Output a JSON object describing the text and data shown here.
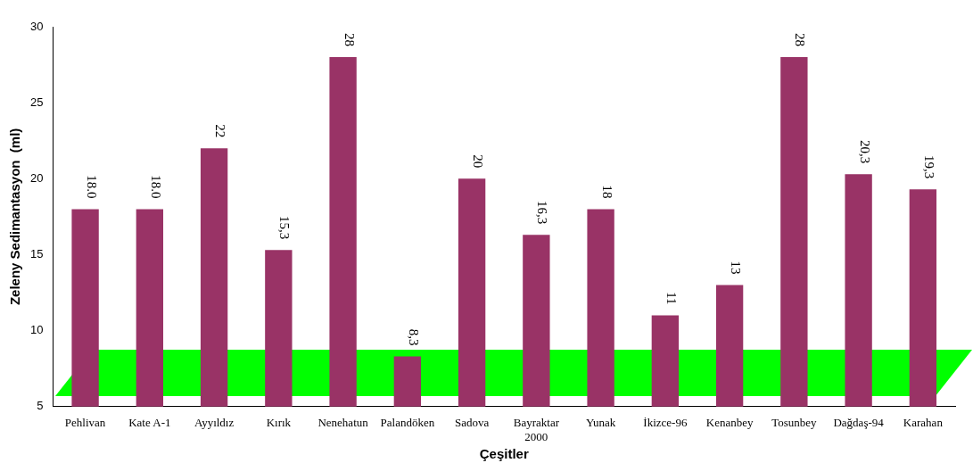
{
  "chart_data": {
    "type": "bar",
    "xlabel": "Çeşitler",
    "ylabel": "Zeleny Sedimantasyon  (ml)",
    "categories": [
      "Pehlivan",
      "Kate A-1",
      "Ayyıldız",
      "Kırık",
      "Nenehatun",
      "Palandöken",
      "Sadova",
      "Bayraktar 2000",
      "Yunak",
      "İkizce-96",
      "Kenanbey",
      "Tosunbey",
      "Dağdaş-94",
      "Karahan"
    ],
    "values": [
      18.0,
      18.0,
      22,
      15.3,
      28,
      8.3,
      20,
      16.3,
      18,
      11,
      13,
      28,
      20.3,
      19.3
    ],
    "value_labels": [
      "18.0",
      "18.0",
      "22",
      "15,3",
      "28",
      "8,3",
      "20",
      "16,3",
      "18",
      "11",
      "13",
      "28",
      "20,3",
      "19,3"
    ],
    "color": "#993366",
    "ylim": [
      5,
      30
    ],
    "yticks": [
      5,
      10,
      15,
      20,
      25,
      30
    ],
    "grid": false,
    "legend": false
  }
}
